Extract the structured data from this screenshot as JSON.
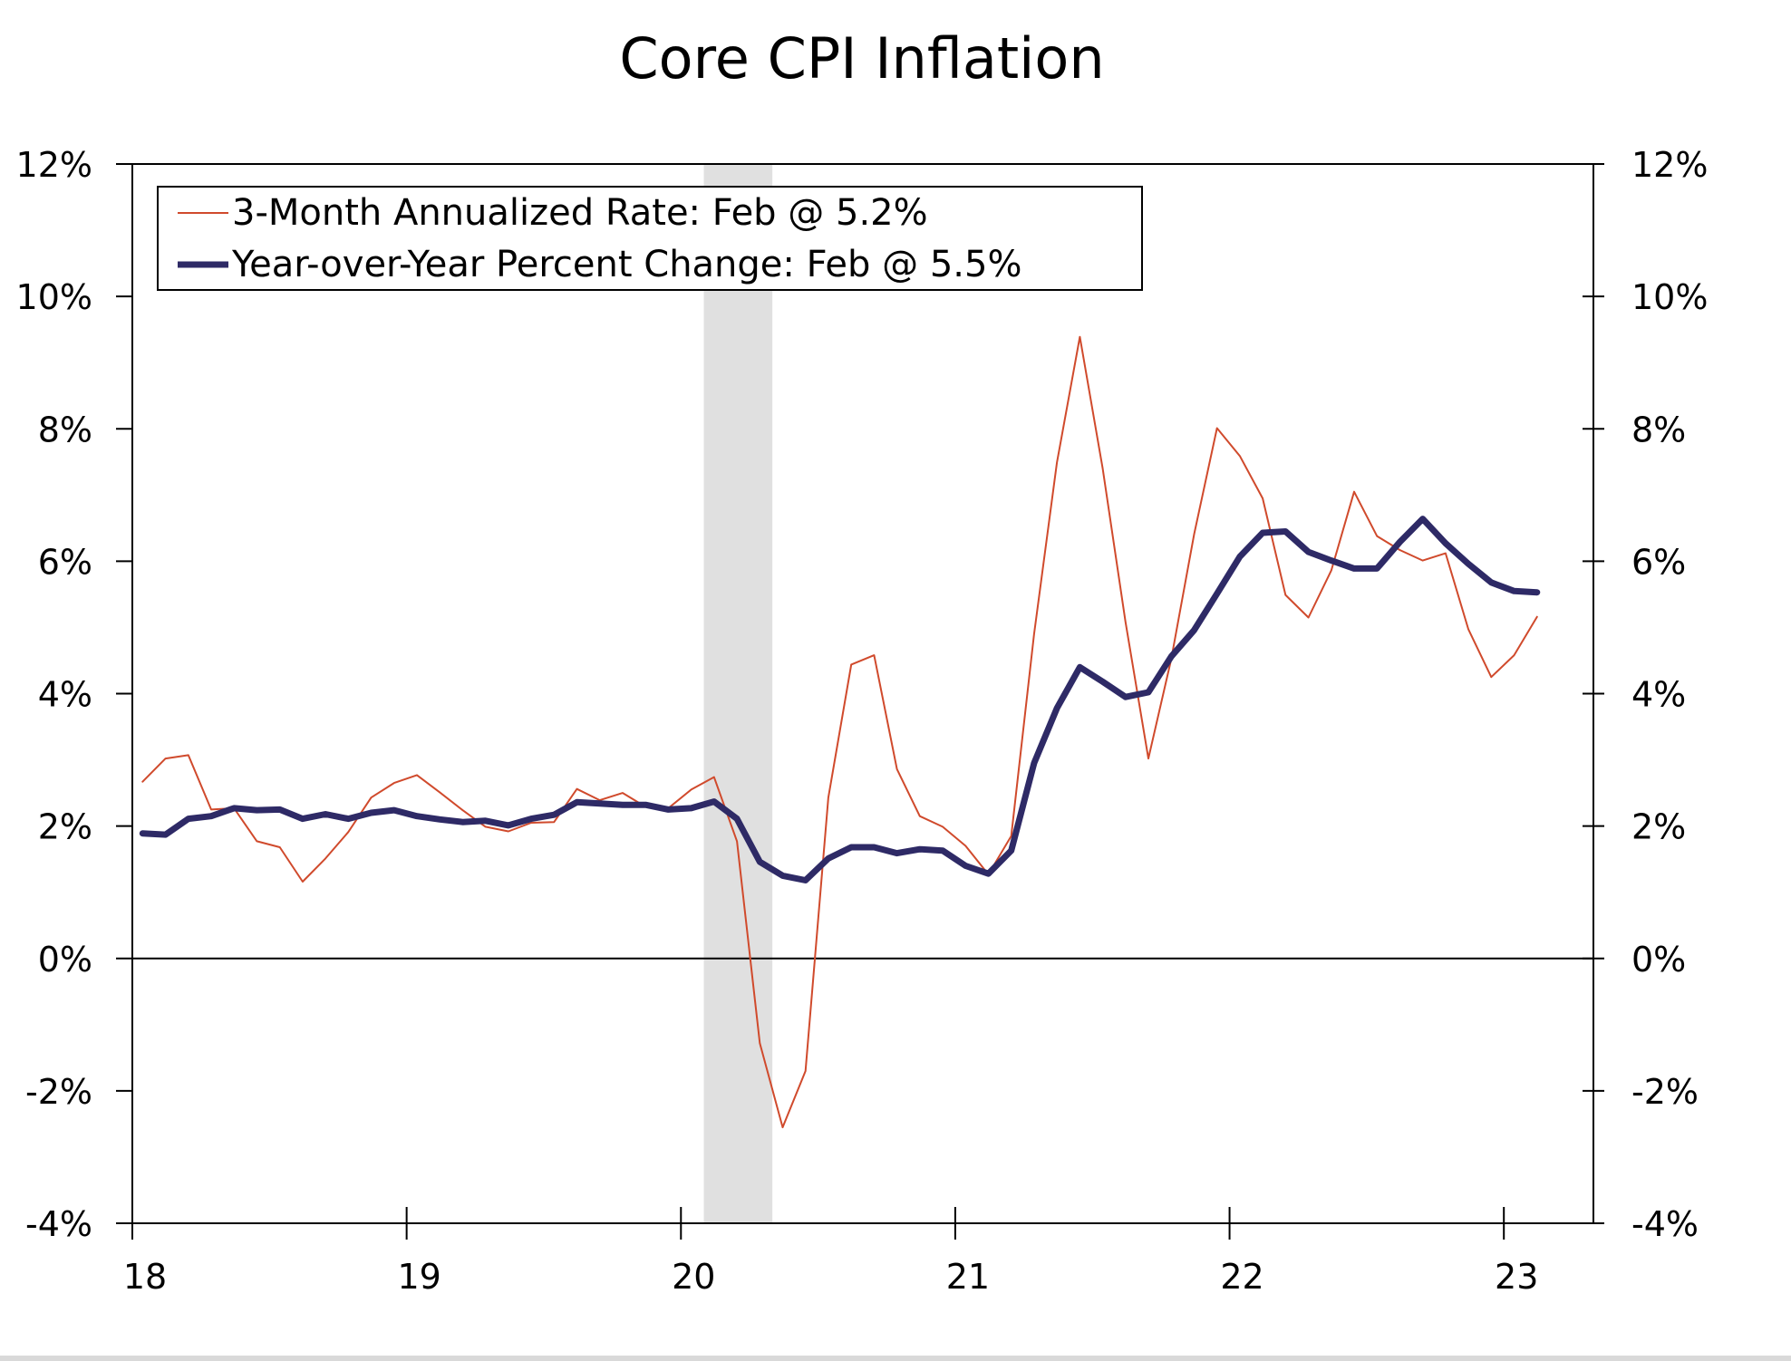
{
  "chart_data": {
    "type": "line",
    "title": "Core CPI Inflation",
    "xlabel": "",
    "ylabel": "",
    "ylim": [
      -4,
      12
    ],
    "yticks": [
      12,
      10,
      8,
      6,
      4,
      2,
      0,
      -2,
      -4
    ],
    "ytick_labels": [
      "12%",
      "10%",
      "8%",
      "6%",
      "4%",
      "2%",
      "0%",
      "-2%",
      "-4%"
    ],
    "secondary_yaxis": true,
    "xticks": [
      "18",
      "19",
      "20",
      "21",
      "22",
      "23"
    ],
    "x_start": "2018-01",
    "x_frequency": "monthly",
    "x_end": "2023-02",
    "grid": false,
    "legend_position": "top-left",
    "recession_shading": {
      "start": "2020-02",
      "end": "2020-04",
      "color": "#e0e0e0"
    },
    "series": [
      {
        "name": "3-Month Annualized Rate: Feb @ 5.2%",
        "color": "#d04a2c",
        "style": "thin",
        "values": [
          2.67,
          3.02,
          3.07,
          2.25,
          2.27,
          1.77,
          1.68,
          1.16,
          1.51,
          1.91,
          2.43,
          2.65,
          2.77,
          2.51,
          2.24,
          1.99,
          1.92,
          2.05,
          2.06,
          2.56,
          2.39,
          2.5,
          2.29,
          2.27,
          2.55,
          2.74,
          1.77,
          -1.28,
          -2.55,
          -1.7,
          2.43,
          4.44,
          4.58,
          2.86,
          2.15,
          1.99,
          1.7,
          1.27,
          1.85,
          4.9,
          7.49,
          9.39,
          7.4,
          5.08,
          3.02,
          4.52,
          6.41,
          8.01,
          7.59,
          6.95,
          5.49,
          5.15,
          5.86,
          7.05,
          6.38,
          6.17,
          6.01,
          6.12,
          4.97,
          4.25,
          4.58,
          5.16
        ]
      },
      {
        "name": "Year-over-Year Percent Change: Feb @ 5.5%",
        "color": "#2e2a66",
        "style": "thick",
        "values": [
          1.89,
          1.87,
          2.11,
          2.15,
          2.27,
          2.24,
          2.25,
          2.11,
          2.18,
          2.11,
          2.2,
          2.24,
          2.15,
          2.1,
          2.06,
          2.08,
          2.01,
          2.11,
          2.17,
          2.36,
          2.34,
          2.32,
          2.32,
          2.25,
          2.27,
          2.37,
          2.11,
          1.46,
          1.25,
          1.18,
          1.51,
          1.68,
          1.68,
          1.59,
          1.65,
          1.63,
          1.4,
          1.28,
          1.63,
          2.95,
          3.78,
          4.4,
          4.18,
          3.95,
          4.02,
          4.56,
          4.96,
          5.51,
          6.07,
          6.43,
          6.45,
          6.14,
          6.01,
          5.89,
          5.89,
          6.29,
          6.64,
          6.27,
          5.96,
          5.68,
          5.55,
          5.53
        ]
      }
    ]
  }
}
